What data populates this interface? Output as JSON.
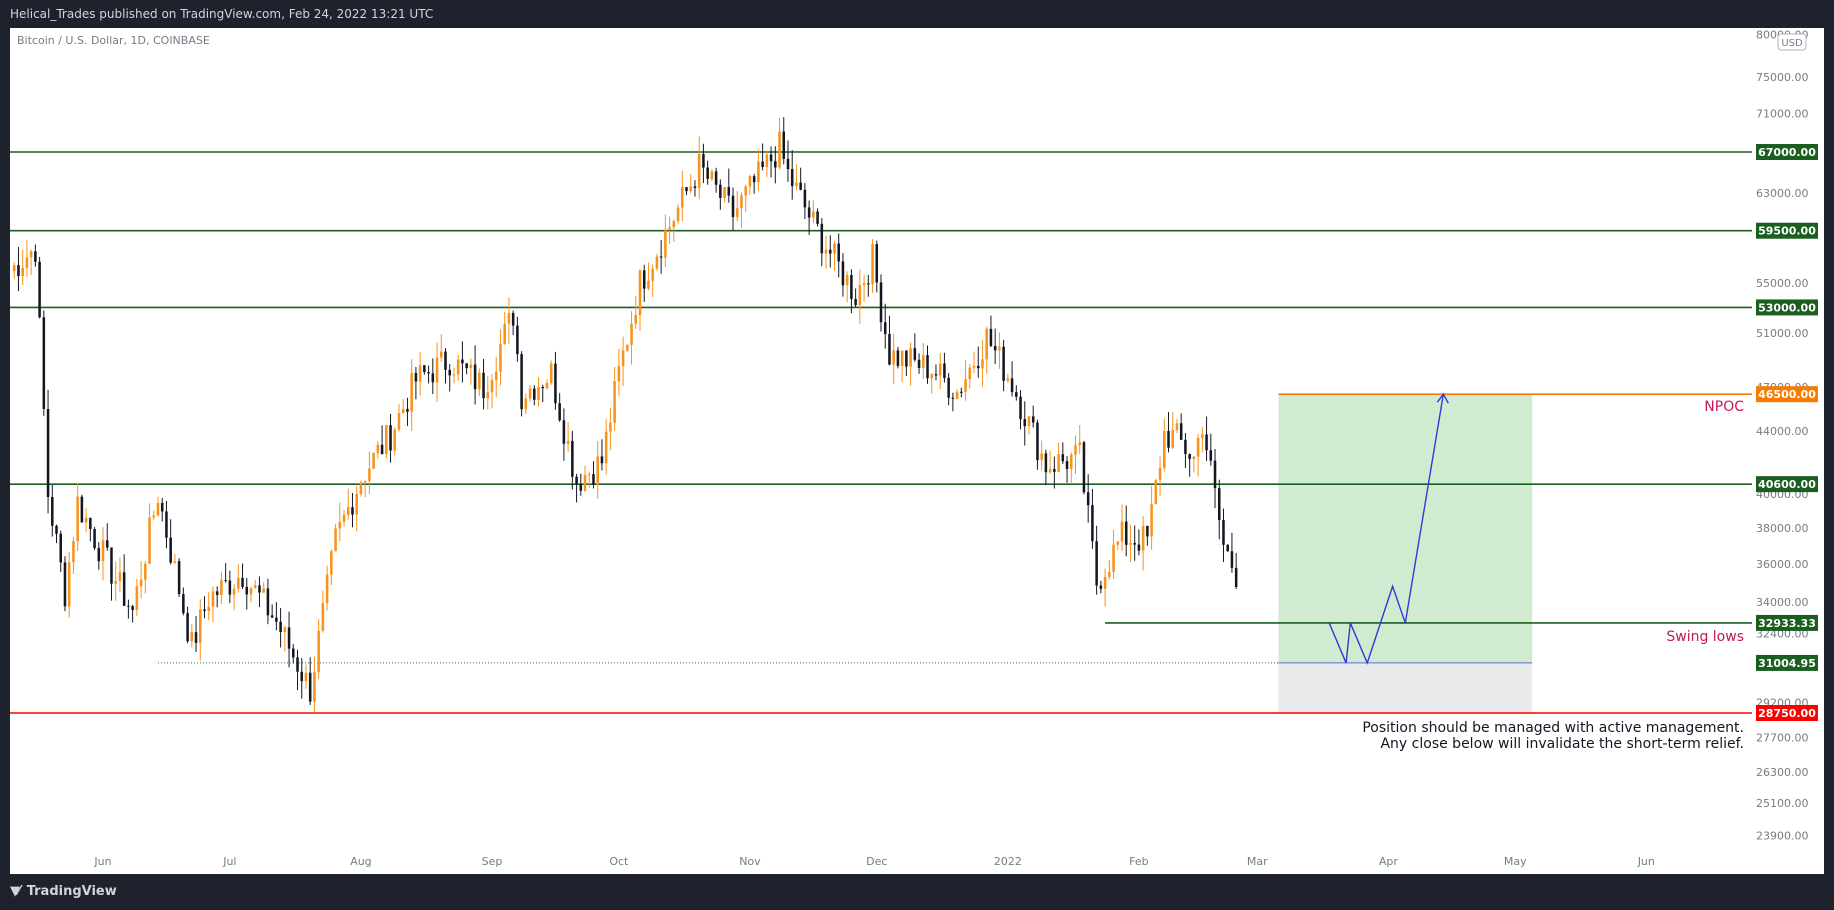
{
  "header": {
    "published_by": "Helical_Trades published on TradingView.com, Feb 24, 2022 13:21 UTC"
  },
  "footer": {
    "brand": "TradingView"
  },
  "chart_data": {
    "type": "candlestick",
    "title": "Bitcoin / U.S. Dollar, 1D, COINBASE",
    "currency_badge": "USD",
    "y_axis": {
      "scale": "log",
      "range": [
        23000,
        80000
      ],
      "ticks": [
        80000,
        75000,
        71000,
        67000,
        63000,
        59500,
        55000,
        51000,
        47000,
        44000,
        40000,
        38000,
        36000,
        34000,
        32400,
        29200,
        27700,
        26300,
        25100,
        23900
      ]
    },
    "x_axis": {
      "range": [
        "2021-05-10",
        "2022-06-26"
      ],
      "ticks": [
        {
          "label": "Jun",
          "date": "2021-06-01"
        },
        {
          "label": "Jul",
          "date": "2021-07-01"
        },
        {
          "label": "Aug",
          "date": "2021-08-01"
        },
        {
          "label": "Sep",
          "date": "2021-09-01"
        },
        {
          "label": "Oct",
          "date": "2021-10-01"
        },
        {
          "label": "Nov",
          "date": "2021-11-01"
        },
        {
          "label": "Dec",
          "date": "2021-12-01"
        },
        {
          "label": "2022",
          "date": "2022-01-01"
        },
        {
          "label": "Feb",
          "date": "2022-02-01"
        },
        {
          "label": "Mar",
          "date": "2022-03-01"
        },
        {
          "label": "Apr",
          "date": "2022-04-01"
        },
        {
          "label": "May",
          "date": "2022-05-01"
        },
        {
          "label": "Jun",
          "date": "2022-06-01"
        }
      ]
    },
    "price_path": [
      {
        "date": "2021-05-10",
        "close": 56000
      },
      {
        "date": "2021-05-16",
        "close": 58000
      },
      {
        "date": "2021-05-19",
        "close": 40000
      },
      {
        "date": "2021-05-23",
        "close": 34500
      },
      {
        "date": "2021-05-26",
        "close": 39500
      },
      {
        "date": "2021-06-01",
        "close": 36500
      },
      {
        "date": "2021-06-08",
        "close": 33500
      },
      {
        "date": "2021-06-14",
        "close": 40000
      },
      {
        "date": "2021-06-22",
        "close": 31800
      },
      {
        "date": "2021-06-26",
        "close": 34200
      },
      {
        "date": "2021-07-04",
        "close": 35500
      },
      {
        "date": "2021-07-12",
        "close": 33000
      },
      {
        "date": "2021-07-20",
        "close": 29800
      },
      {
        "date": "2021-07-26",
        "close": 37300
      },
      {
        "date": "2021-08-01",
        "close": 41000
      },
      {
        "date": "2021-08-08",
        "close": 43800
      },
      {
        "date": "2021-08-14",
        "close": 47500
      },
      {
        "date": "2021-08-22",
        "close": 49000
      },
      {
        "date": "2021-08-30",
        "close": 47000
      },
      {
        "date": "2021-09-06",
        "close": 52500
      },
      {
        "date": "2021-09-08",
        "close": 46500
      },
      {
        "date": "2021-09-15",
        "close": 48000
      },
      {
        "date": "2021-09-21",
        "close": 40800
      },
      {
        "date": "2021-09-27",
        "close": 42000
      },
      {
        "date": "2021-10-01",
        "close": 48000
      },
      {
        "date": "2021-10-06",
        "close": 55000
      },
      {
        "date": "2021-10-15",
        "close": 61500
      },
      {
        "date": "2021-10-20",
        "close": 65500
      },
      {
        "date": "2021-10-28",
        "close": 61000
      },
      {
        "date": "2021-11-08",
        "close": 67500
      },
      {
        "date": "2021-11-10",
        "close": 64800
      },
      {
        "date": "2021-11-16",
        "close": 60100
      },
      {
        "date": "2021-11-26",
        "close": 54000
      },
      {
        "date": "2021-11-30",
        "close": 57000
      },
      {
        "date": "2021-12-04",
        "close": 49400
      },
      {
        "date": "2021-12-14",
        "close": 48300
      },
      {
        "date": "2021-12-20",
        "close": 46700
      },
      {
        "date": "2021-12-27",
        "close": 50700
      },
      {
        "date": "2022-01-02",
        "close": 47300
      },
      {
        "date": "2022-01-10",
        "close": 41800
      },
      {
        "date": "2022-01-18",
        "close": 42300
      },
      {
        "date": "2022-01-22",
        "close": 35000
      },
      {
        "date": "2022-01-28",
        "close": 37500
      },
      {
        "date": "2022-02-03",
        "close": 37300
      },
      {
        "date": "2022-02-07",
        "close": 43800
      },
      {
        "date": "2022-02-10",
        "close": 43500
      },
      {
        "date": "2022-02-14",
        "close": 42200
      },
      {
        "date": "2022-02-16",
        "close": 44600
      },
      {
        "date": "2022-02-21",
        "close": 37000
      },
      {
        "date": "2022-02-24",
        "close": 35500
      }
    ],
    "annotations": {
      "horizontal_levels": [
        {
          "price": 67000,
          "label": "67000.00",
          "color": "#1b5e20"
        },
        {
          "price": 59500,
          "label": "59500.00",
          "color": "#1b5e20"
        },
        {
          "price": 53000,
          "label": "53000.00",
          "color": "#1b5e20"
        },
        {
          "price": 40600,
          "label": "40600.00",
          "color": "#1b5e20"
        },
        {
          "price": 32933.33,
          "label": "32933.33",
          "color": "#1b5e20",
          "from_date": "2022-01-24"
        },
        {
          "price": 28750,
          "label": "28750.00",
          "color": "#ff0000"
        }
      ],
      "npoc": {
        "price": 46500,
        "label": "46500.00",
        "text": "NPOC",
        "color": "#f57c00"
      },
      "swing_lows": {
        "price": 31004.95,
        "label": "31004.95",
        "text": "Swing lows"
      },
      "long_position": {
        "start_date": "2022-03-06",
        "end_date": "2022-05-05",
        "entry": 31004.95,
        "target": 46500,
        "stop": 28750
      },
      "projection_path": [
        {
          "date": "2022-03-18",
          "price": 32933.33
        },
        {
          "date": "2022-03-22",
          "price": 31004.95
        },
        {
          "date": "2022-03-23",
          "price": 32933.33
        },
        {
          "date": "2022-03-27",
          "price": 31004.95
        },
        {
          "date": "2022-04-02",
          "price": 34800
        },
        {
          "date": "2022-04-05",
          "price": 32933.33
        },
        {
          "date": "2022-04-14",
          "price": 46500
        }
      ],
      "note_lines": [
        "Position should be managed with active management.",
        "Any close below will invalidate the short-term relief."
      ]
    },
    "colors": {
      "up_candle": "#f7931a",
      "down_candle": "#131722",
      "target_zone": "#d0ebcf",
      "stop_zone": "#e9eaec",
      "projection": "#2e3bd6",
      "label_red": "#c2185b"
    },
    "grid": false
  }
}
